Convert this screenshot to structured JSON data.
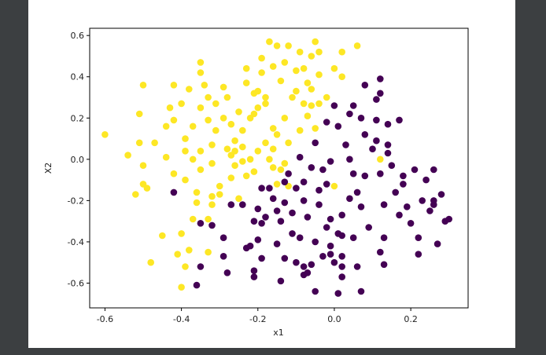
{
  "chart_data": {
    "type": "scatter",
    "title": "",
    "xlabel": "x1",
    "ylabel": "X2",
    "xlim": [
      -0.64,
      0.35
    ],
    "ylim": [
      -0.72,
      0.635
    ],
    "xticks": [
      -0.6,
      -0.4,
      -0.2,
      0.0,
      0.2
    ],
    "yticks": [
      -0.6,
      -0.4,
      -0.2,
      0.0,
      0.2,
      0.4,
      0.6
    ],
    "xtick_labels": [
      "-0.6",
      "-0.4",
      "-0.2",
      "0.0",
      "0.2"
    ],
    "ytick_labels": [
      "-0.6",
      "-0.4",
      "-0.2",
      "0.0",
      "0.2",
      "0.4",
      "0.6"
    ],
    "grid": false,
    "legend": "none",
    "colors": {
      "class_0": "#440154",
      "class_1": "#fde725"
    },
    "series": [
      {
        "class": 1,
        "points": [
          [
            -0.6,
            0.12
          ],
          [
            -0.54,
            0.02
          ],
          [
            -0.52,
            -0.17
          ],
          [
            -0.51,
            0.22
          ],
          [
            -0.51,
            0.08
          ],
          [
            -0.5,
            0.36
          ],
          [
            -0.5,
            -0.12
          ],
          [
            -0.5,
            -0.03
          ],
          [
            -0.49,
            -0.14
          ],
          [
            -0.48,
            -0.5
          ],
          [
            -0.47,
            0.08
          ],
          [
            -0.45,
            -0.37
          ],
          [
            -0.44,
            0.01
          ],
          [
            -0.44,
            0.16
          ],
          [
            -0.43,
            0.25
          ],
          [
            -0.42,
            0.19
          ],
          [
            -0.42,
            0.36
          ],
          [
            -0.42,
            -0.07
          ],
          [
            -0.41,
            -0.46
          ],
          [
            -0.4,
            0.27
          ],
          [
            -0.4,
            -0.62
          ],
          [
            -0.4,
            -0.36
          ],
          [
            -0.39,
            0.1
          ],
          [
            -0.39,
            -0.52
          ],
          [
            -0.39,
            0.04
          ],
          [
            -0.39,
            -0.1
          ],
          [
            -0.38,
            -0.44
          ],
          [
            -0.38,
            0.34
          ],
          [
            -0.37,
            -0.29
          ],
          [
            -0.37,
            0.16
          ],
          [
            -0.37,
            0.0
          ],
          [
            -0.36,
            -0.16
          ],
          [
            -0.36,
            -0.21
          ],
          [
            -0.35,
            -0.05
          ],
          [
            -0.35,
            0.47
          ],
          [
            -0.35,
            0.42
          ],
          [
            -0.35,
            0.04
          ],
          [
            -0.35,
            0.25
          ],
          [
            -0.34,
            0.36
          ],
          [
            -0.33,
            0.3
          ],
          [
            -0.33,
            -0.45
          ],
          [
            -0.33,
            0.19
          ],
          [
            -0.33,
            -0.29
          ],
          [
            -0.32,
            -0.22
          ],
          [
            -0.32,
            -0.18
          ],
          [
            -0.32,
            0.07
          ],
          [
            -0.32,
            -0.02
          ],
          [
            -0.31,
            0.27
          ],
          [
            -0.31,
            0.14
          ],
          [
            -0.3,
            -0.13
          ],
          [
            -0.3,
            -0.17
          ],
          [
            -0.29,
            0.35
          ],
          [
            -0.29,
            0.2
          ],
          [
            -0.28,
            0.3
          ],
          [
            -0.28,
            0.05
          ],
          [
            -0.27,
            0.02
          ],
          [
            -0.27,
            -0.09
          ],
          [
            -0.27,
            0.17
          ],
          [
            -0.26,
            -0.03
          ],
          [
            -0.26,
            0.09
          ],
          [
            -0.26,
            0.04
          ],
          [
            -0.25,
            -0.19
          ],
          [
            -0.25,
            0.23
          ],
          [
            -0.24,
            -0.01
          ],
          [
            -0.24,
            0.14
          ],
          [
            -0.24,
            0.06
          ],
          [
            -0.23,
            0.44
          ],
          [
            -0.23,
            0.37
          ],
          [
            -0.23,
            -0.08
          ],
          [
            -0.22,
            0.2
          ],
          [
            -0.22,
            0.0
          ],
          [
            -0.21,
            0.32
          ],
          [
            -0.21,
            0.22
          ],
          [
            -0.21,
            -0.06
          ],
          [
            -0.2,
            0.33
          ],
          [
            -0.2,
            0.04
          ],
          [
            -0.2,
            0.25
          ],
          [
            -0.19,
            0.42
          ],
          [
            -0.19,
            0.49
          ],
          [
            -0.18,
            0.08
          ],
          [
            -0.18,
            0.3
          ],
          [
            -0.18,
            0.27
          ],
          [
            -0.17,
            0.57
          ],
          [
            -0.17,
            0.0
          ],
          [
            -0.16,
            0.45
          ],
          [
            -0.16,
            -0.04
          ],
          [
            -0.16,
            0.15
          ],
          [
            -0.16,
            0.05
          ],
          [
            -0.15,
            0.12
          ],
          [
            -0.15,
            0.55
          ],
          [
            -0.15,
            -0.12
          ],
          [
            -0.14,
            0.38
          ],
          [
            -0.14,
            -0.05
          ],
          [
            -0.13,
            0.47
          ],
          [
            -0.13,
            0.2
          ],
          [
            -0.13,
            -0.02
          ],
          [
            -0.12,
            0.55
          ],
          [
            -0.12,
            0.08
          ],
          [
            -0.12,
            -0.13
          ],
          [
            -0.11,
            0.3
          ],
          [
            -0.1,
            0.43
          ],
          [
            -0.1,
            0.33
          ],
          [
            -0.09,
            0.52
          ],
          [
            -0.09,
            0.14
          ],
          [
            -0.08,
            0.27
          ],
          [
            -0.08,
            0.44
          ],
          [
            -0.07,
            0.21
          ],
          [
            -0.06,
            0.5
          ],
          [
            -0.06,
            0.26
          ],
          [
            -0.06,
            0.34
          ],
          [
            -0.05,
            0.57
          ],
          [
            -0.05,
            0.15
          ],
          [
            -0.04,
            0.41
          ],
          [
            -0.04,
            0.52
          ],
          [
            -0.04,
            0.27
          ],
          [
            -0.02,
            0.3
          ],
          [
            0.0,
            0.44
          ],
          [
            0.0,
            -0.13
          ],
          [
            0.02,
            0.4
          ],
          [
            0.02,
            0.52
          ],
          [
            0.06,
            0.55
          ],
          [
            0.12,
            0.0
          ],
          [
            -0.07,
            0.37
          ]
        ]
      },
      {
        "class": 0,
        "points": [
          [
            -0.42,
            -0.16
          ],
          [
            -0.36,
            -0.61
          ],
          [
            -0.35,
            -0.31
          ],
          [
            -0.35,
            -0.52
          ],
          [
            -0.32,
            -0.32
          ],
          [
            -0.29,
            -0.38
          ],
          [
            -0.29,
            -0.47
          ],
          [
            -0.28,
            -0.55
          ],
          [
            -0.27,
            -0.22
          ],
          [
            -0.24,
            -0.22
          ],
          [
            -0.23,
            -0.43
          ],
          [
            -0.22,
            -0.42
          ],
          [
            -0.21,
            -0.3
          ],
          [
            -0.21,
            -0.57
          ],
          [
            -0.21,
            -0.54
          ],
          [
            -0.2,
            -0.39
          ],
          [
            -0.2,
            -0.24
          ],
          [
            -0.19,
            -0.14
          ],
          [
            -0.19,
            -0.31
          ],
          [
            -0.19,
            -0.48
          ],
          [
            -0.18,
            -0.28
          ],
          [
            -0.17,
            -0.14
          ],
          [
            -0.16,
            -0.19
          ],
          [
            -0.15,
            -0.25
          ],
          [
            -0.15,
            -0.41
          ],
          [
            -0.14,
            -0.3
          ],
          [
            -0.14,
            -0.59
          ],
          [
            -0.13,
            -0.11
          ],
          [
            -0.13,
            -0.21
          ],
          [
            -0.13,
            -0.48
          ],
          [
            -0.12,
            -0.07
          ],
          [
            -0.11,
            -0.26
          ],
          [
            -0.11,
            -0.36
          ],
          [
            -0.1,
            -0.5
          ],
          [
            -0.1,
            -0.14
          ],
          [
            -0.09,
            -0.38
          ],
          [
            -0.09,
            0.01
          ],
          [
            -0.08,
            -0.2
          ],
          [
            -0.08,
            -0.56
          ],
          [
            -0.08,
            -0.52
          ],
          [
            -0.08,
            -0.11
          ],
          [
            -0.07,
            -0.28
          ],
          [
            -0.07,
            -0.55
          ],
          [
            -0.06,
            -0.04
          ],
          [
            -0.06,
            -0.51
          ],
          [
            -0.05,
            -0.4
          ],
          [
            -0.05,
            0.08
          ],
          [
            -0.05,
            -0.64
          ],
          [
            -0.04,
            -0.15
          ],
          [
            -0.04,
            -0.22
          ],
          [
            -0.03,
            -0.47
          ],
          [
            -0.03,
            -0.05
          ],
          [
            -0.02,
            -0.33
          ],
          [
            -0.02,
            -0.12
          ],
          [
            -0.02,
            0.18
          ],
          [
            -0.01,
            -0.42
          ],
          [
            -0.01,
            -0.29
          ],
          [
            -0.01,
            -0.46
          ],
          [
            -0.01,
            -0.01
          ],
          [
            0.0,
            0.26
          ],
          [
            0.0,
            -0.5
          ],
          [
            0.01,
            -0.65
          ],
          [
            0.01,
            0.16
          ],
          [
            0.01,
            -0.36
          ],
          [
            0.02,
            -0.47
          ],
          [
            0.02,
            -0.27
          ],
          [
            0.02,
            -0.52
          ],
          [
            0.02,
            -0.57
          ],
          [
            0.02,
            -0.37
          ],
          [
            0.03,
            0.07
          ],
          [
            0.04,
            -0.19
          ],
          [
            0.04,
            0.0
          ],
          [
            0.04,
            0.22
          ],
          [
            0.05,
            -0.38
          ],
          [
            0.05,
            0.26
          ],
          [
            0.05,
            -0.07
          ],
          [
            0.06,
            -0.52
          ],
          [
            0.06,
            -0.16
          ],
          [
            0.07,
            -0.64
          ],
          [
            0.07,
            0.2
          ],
          [
            0.07,
            -0.23
          ],
          [
            0.08,
            0.12
          ],
          [
            0.08,
            -0.08
          ],
          [
            0.08,
            0.36
          ],
          [
            0.09,
            -0.33
          ],
          [
            0.1,
            0.05
          ],
          [
            0.11,
            0.29
          ],
          [
            0.11,
            0.19
          ],
          [
            0.11,
            0.09
          ],
          [
            0.12,
            -0.07
          ],
          [
            0.12,
            -0.45
          ],
          [
            0.12,
            0.32
          ],
          [
            0.12,
            0.39
          ],
          [
            0.13,
            -0.22
          ],
          [
            0.13,
            -0.38
          ],
          [
            0.13,
            -0.51
          ],
          [
            0.14,
            0.17
          ],
          [
            0.14,
            0.07
          ],
          [
            0.14,
            0.03
          ],
          [
            0.15,
            -0.03
          ],
          [
            0.16,
            -0.16
          ],
          [
            0.17,
            -0.27
          ],
          [
            0.17,
            0.19
          ],
          [
            0.18,
            -0.12
          ],
          [
            0.18,
            -0.08
          ],
          [
            0.19,
            -0.23
          ],
          [
            0.2,
            -0.31
          ],
          [
            0.21,
            -0.05
          ],
          [
            0.22,
            -0.38
          ],
          [
            0.22,
            -0.46
          ],
          [
            0.23,
            -0.2
          ],
          [
            0.24,
            -0.1
          ],
          [
            0.25,
            -0.25
          ],
          [
            0.26,
            -0.05
          ],
          [
            0.26,
            -0.22
          ],
          [
            0.27,
            -0.41
          ],
          [
            0.28,
            -0.17
          ],
          [
            0.29,
            -0.3
          ],
          [
            0.3,
            -0.29
          ],
          [
            0.26,
            -0.2
          ]
        ]
      }
    ]
  }
}
